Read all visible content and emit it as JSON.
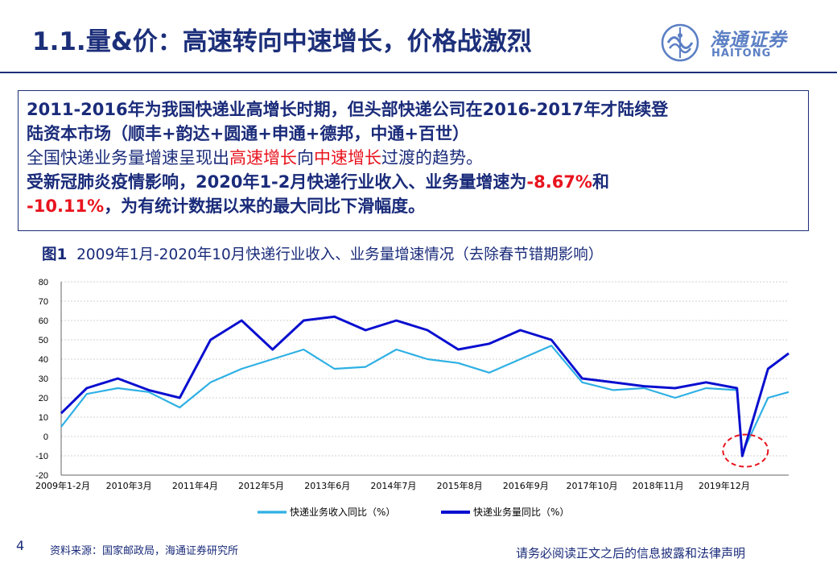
{
  "header": {
    "title": "1.1.量&价：高速转向中速增长，价格战激烈",
    "logo_cn": "海通证券",
    "logo_en": "HAITONG"
  },
  "textbox": {
    "line1": "2011-2016年为我国快递业高增长时期，但头部快递公司在2016-2017年才陆续登",
    "line2": "陆资本市场（顺丰+韵达+圆通+申通+德邦，中通+百世）",
    "line3_a": "全国快递业务量增速呈现出",
    "line3_b": "高速增长",
    "line3_c": "向",
    "line3_d": "中速增长",
    "line3_e": "过渡的趋势。",
    "line4_a": "受新冠肺炎疫情影响，2020年1-2月快递行业收入、业务量增速为",
    "line4_b": "-8.67%",
    "line4_c": "和",
    "line5_a": "-10.11%",
    "line5_b": "，为有统计数据以来的最大同比下滑幅度。"
  },
  "caption": {
    "fig": "图1",
    "text": "2009年1月-2020年10月快递行业收入、业务量增速情况（去除春节错期影响）"
  },
  "chart_data": {
    "type": "line",
    "ylim": [
      -20,
      80
    ],
    "yticks": [
      "80",
      "70",
      "60",
      "50",
      "40",
      "30",
      "20",
      "10",
      "0",
      "-10",
      "-20"
    ],
    "xticks": [
      "2009年1-2月",
      "2010年3月",
      "2011年4月",
      "2012年5月",
      "2013年6月",
      "2014年7月",
      "2015年8月",
      "2016年9月",
      "2017年10月",
      "2018年11月",
      "2019年12月"
    ],
    "grid": true,
    "legend_position": "bottom",
    "colors": {
      "revenue": "#2eb0e4",
      "volume": "#0a0fcf",
      "highlight_circle": "#e8141e"
    },
    "series": [
      {
        "name": "快递业务收入同比（%）",
        "x": [
          "2009-01",
          "2009-06",
          "2009-12",
          "2010-06",
          "2010-12",
          "2011-06",
          "2011-12",
          "2012-06",
          "2012-12",
          "2013-06",
          "2013-12",
          "2014-06",
          "2014-12",
          "2015-06",
          "2015-12",
          "2016-06",
          "2016-12",
          "2017-06",
          "2017-12",
          "2018-06",
          "2018-12",
          "2019-06",
          "2019-12",
          "2020-01",
          "2020-06",
          "2020-10"
        ],
        "values": [
          5,
          22,
          25,
          23,
          15,
          28,
          35,
          40,
          45,
          35,
          36,
          45,
          40,
          38,
          33,
          40,
          47,
          28,
          24,
          25,
          20,
          25,
          24,
          -8.67,
          20,
          23
        ]
      },
      {
        "name": "快递业务量同比（%）",
        "x": [
          "2009-01",
          "2009-06",
          "2009-12",
          "2010-06",
          "2010-12",
          "2011-06",
          "2011-12",
          "2012-06",
          "2012-12",
          "2013-06",
          "2013-12",
          "2014-06",
          "2014-12",
          "2015-06",
          "2015-12",
          "2016-06",
          "2016-12",
          "2017-06",
          "2017-12",
          "2018-06",
          "2018-12",
          "2019-06",
          "2019-12",
          "2020-01",
          "2020-06",
          "2020-10"
        ],
        "values": [
          12,
          25,
          30,
          24,
          20,
          50,
          60,
          45,
          60,
          62,
          55,
          60,
          55,
          45,
          48,
          55,
          50,
          30,
          28,
          26,
          25,
          28,
          25,
          -10.11,
          35,
          43
        ]
      }
    ]
  },
  "footer": {
    "page_number": "4",
    "source": "资料来源：国家邮政局，海通证券研究所",
    "disclaimer": "请务必阅读正文之后的信息披露和法律声明"
  }
}
